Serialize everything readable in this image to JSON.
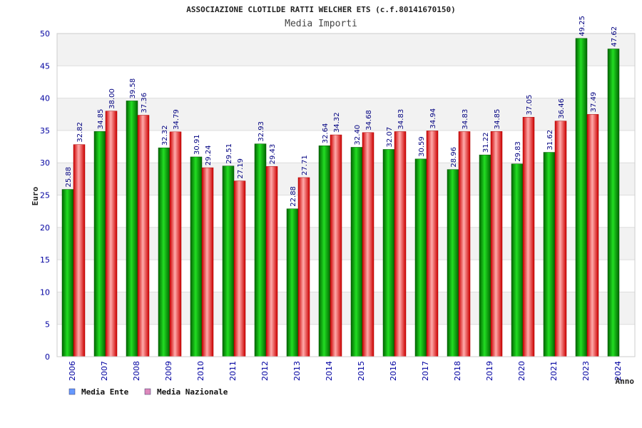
{
  "chart_data": {
    "type": "bar",
    "title": "ASSOCIAZIONE CLOTILDE RATTI WELCHER ETS (c.f.80141670150)",
    "subtitle": "Media Importi",
    "ylabel": "Euro",
    "xlabel": "Anno",
    "ylim": [
      0,
      50
    ],
    "yticks": [
      "0",
      "5",
      "10",
      "15",
      "20",
      "25",
      "30",
      "35",
      "40",
      "45",
      "50"
    ],
    "grid": true,
    "legend_position": "bottom-left",
    "categories": [
      "2006",
      "2007",
      "2008",
      "2009",
      "2010",
      "2011",
      "2012",
      "2013",
      "2014",
      "2015",
      "2016",
      "2017",
      "2018",
      "2019",
      "2020",
      "2021",
      "2023",
      "2024"
    ],
    "series": [
      {
        "name": "Media Ente",
        "color": "#00aa00",
        "legend_color": "#6699ff",
        "values": [
          25.88,
          34.85,
          39.58,
          32.32,
          30.91,
          29.51,
          32.93,
          22.88,
          32.64,
          32.4,
          32.07,
          30.59,
          28.96,
          31.22,
          29.83,
          31.62,
          49.25,
          47.62
        ],
        "labels": [
          "25.88",
          "34.85",
          "39.58",
          "32.32",
          "30.91",
          "29.51",
          "32.93",
          "22.88",
          "32.64",
          "32.40",
          "32.07",
          "30.59",
          "28.96",
          "31.22",
          "29.83",
          "31.62",
          "49.25",
          "47.62"
        ]
      },
      {
        "name": "Media Nazionale",
        "color": "#ee2222",
        "legend_color": "#dd88bb",
        "values": [
          32.82,
          38.0,
          37.36,
          34.79,
          29.24,
          27.19,
          29.43,
          27.71,
          34.32,
          34.68,
          34.83,
          34.94,
          34.83,
          34.85,
          37.05,
          36.46,
          37.49,
          null
        ],
        "labels": [
          "32.82",
          "38.00",
          "37.36",
          "34.79",
          "29.24",
          "27.19",
          "29.43",
          "27.71",
          "34.32",
          "34.68",
          "34.83",
          "34.94",
          "34.83",
          "34.85",
          "37.05",
          "36.46",
          "37.49",
          ""
        ]
      }
    ]
  }
}
